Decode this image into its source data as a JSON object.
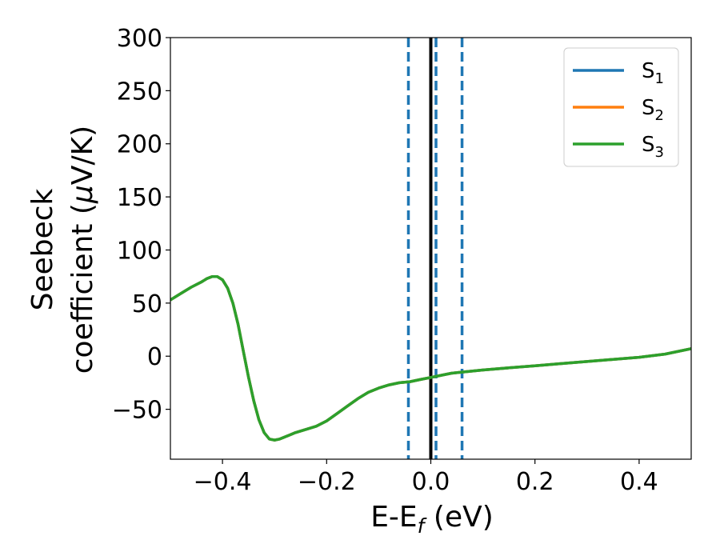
{
  "chart_data": {
    "type": "line",
    "xlabel": {
      "main": "E-E",
      "sub": "f",
      "tail": " (eV)"
    },
    "ylabel": {
      "line1": "Seebeck",
      "line2_a": "coefficient  (",
      "mu": "μ",
      "line2_b": "V/K)"
    },
    "xlim": [
      -0.5,
      0.5
    ],
    "ylim": [
      -97,
      300
    ],
    "xticks": [
      {
        "value": -0.4,
        "label": "−0.4"
      },
      {
        "value": -0.2,
        "label": "−0.2"
      },
      {
        "value": 0.0,
        "label": "0.0"
      },
      {
        "value": 0.2,
        "label": "0.2"
      },
      {
        "value": 0.4,
        "label": "0.4"
      }
    ],
    "yticks": [
      {
        "value": -50,
        "label": "−50"
      },
      {
        "value": 0,
        "label": "0"
      },
      {
        "value": 50,
        "label": "50"
      },
      {
        "value": 100,
        "label": "100"
      },
      {
        "value": 150,
        "label": "150"
      },
      {
        "value": 200,
        "label": "200"
      },
      {
        "value": 250,
        "label": "250"
      },
      {
        "value": 300,
        "label": "300"
      }
    ],
    "grid": false,
    "legend_position": "top-right",
    "series": [
      {
        "name": "S",
        "subscript": "1",
        "color": "#1f77b4",
        "x": [
          -0.5,
          -0.48,
          -0.46,
          -0.44,
          -0.43,
          -0.42,
          -0.41,
          -0.4,
          -0.39,
          -0.38,
          -0.37,
          -0.36,
          -0.35,
          -0.34,
          -0.33,
          -0.32,
          -0.31,
          -0.3,
          -0.29,
          -0.28,
          -0.27,
          -0.26,
          -0.24,
          -0.22,
          -0.2,
          -0.18,
          -0.16,
          -0.14,
          -0.12,
          -0.1,
          -0.08,
          -0.06,
          -0.04,
          -0.02,
          0.0,
          0.02,
          0.04,
          0.06,
          0.1,
          0.15,
          0.2,
          0.25,
          0.3,
          0.35,
          0.4,
          0.45,
          0.5
        ],
        "y": [
          53,
          59,
          65,
          70,
          73,
          75,
          75,
          72,
          64,
          50,
          30,
          5,
          -20,
          -42,
          -60,
          -72,
          -78,
          -79,
          -78,
          -76,
          -74,
          -72,
          -69,
          -66,
          -61,
          -54,
          -47,
          -40,
          -34,
          -30,
          -27,
          -25,
          -24,
          -22,
          -20,
          -18,
          -16,
          -15,
          -13,
          -11,
          -9,
          -7,
          -5,
          -3,
          -1,
          2,
          7
        ]
      },
      {
        "name": "S",
        "subscript": "2",
        "color": "#ff7f0e",
        "x": [
          -0.5,
          -0.48,
          -0.46,
          -0.44,
          -0.43,
          -0.42,
          -0.41,
          -0.4,
          -0.39,
          -0.38,
          -0.37,
          -0.36,
          -0.35,
          -0.34,
          -0.33,
          -0.32,
          -0.31,
          -0.3,
          -0.29,
          -0.28,
          -0.27,
          -0.26,
          -0.24,
          -0.22,
          -0.2,
          -0.18,
          -0.16,
          -0.14,
          -0.12,
          -0.1,
          -0.08,
          -0.06,
          -0.04,
          -0.02,
          0.0,
          0.02,
          0.04,
          0.06,
          0.1,
          0.15,
          0.2,
          0.25,
          0.3,
          0.35,
          0.4,
          0.45,
          0.5
        ],
        "y": [
          53,
          59,
          65,
          70,
          73,
          75,
          75,
          72,
          64,
          50,
          30,
          5,
          -20,
          -42,
          -60,
          -72,
          -78,
          -79,
          -78,
          -76,
          -74,
          -72,
          -69,
          -66,
          -61,
          -54,
          -47,
          -40,
          -34,
          -30,
          -27,
          -25,
          -24,
          -22,
          -20,
          -18,
          -16,
          -15,
          -13,
          -11,
          -9,
          -7,
          -5,
          -3,
          -1,
          2,
          7
        ]
      },
      {
        "name": "S",
        "subscript": "3",
        "color": "#2ca02c",
        "x": [
          -0.5,
          -0.48,
          -0.46,
          -0.44,
          -0.43,
          -0.42,
          -0.41,
          -0.4,
          -0.39,
          -0.38,
          -0.37,
          -0.36,
          -0.35,
          -0.34,
          -0.33,
          -0.32,
          -0.31,
          -0.3,
          -0.29,
          -0.28,
          -0.27,
          -0.26,
          -0.24,
          -0.22,
          -0.2,
          -0.18,
          -0.16,
          -0.14,
          -0.12,
          -0.1,
          -0.08,
          -0.06,
          -0.04,
          -0.02,
          0.0,
          0.02,
          0.04,
          0.06,
          0.1,
          0.15,
          0.2,
          0.25,
          0.3,
          0.35,
          0.4,
          0.45,
          0.5
        ],
        "y": [
          53,
          59,
          65,
          70,
          73,
          75,
          75,
          72,
          64,
          50,
          30,
          5,
          -20,
          -42,
          -60,
          -72,
          -78,
          -79,
          -78,
          -76,
          -74,
          -72,
          -69,
          -66,
          -61,
          -54,
          -47,
          -40,
          -34,
          -30,
          -27,
          -25,
          -24,
          -22,
          -20,
          -18,
          -16,
          -15,
          -13,
          -11,
          -9,
          -7,
          -5,
          -3,
          -1,
          2,
          7
        ]
      }
    ],
    "vertical_lines": [
      {
        "x": 0.0,
        "style": "solid",
        "color": "#000000"
      },
      {
        "x": -0.043,
        "style": "dashed",
        "color": "#1f77b4"
      },
      {
        "x": 0.01,
        "style": "dashed",
        "color": "#1f77b4"
      },
      {
        "x": 0.06,
        "style": "dashed",
        "color": "#1f77b4"
      }
    ]
  }
}
